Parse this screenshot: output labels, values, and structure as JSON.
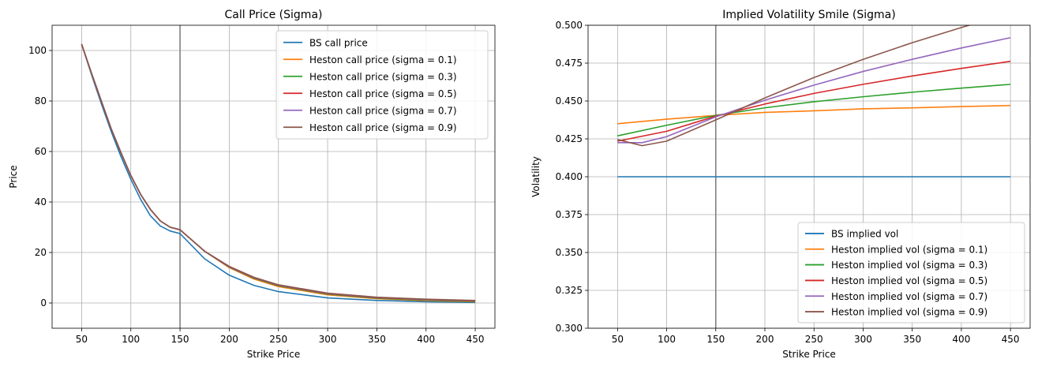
{
  "chart_data": [
    {
      "type": "line",
      "title": "Call Price (Sigma)",
      "xlabel": "Strike Price",
      "ylabel": "Price",
      "xlim": [
        20,
        470
      ],
      "ylim": [
        -10,
        110
      ],
      "xticks": [
        50,
        100,
        150,
        200,
        250,
        300,
        350,
        400,
        450
      ],
      "xtick_labels": [
        "50",
        "100",
        "150",
        "200",
        "250",
        "300",
        "350",
        "400",
        "450"
      ],
      "yticks": [
        0,
        20,
        40,
        60,
        80,
        100
      ],
      "ytick_labels": [
        "0",
        "20",
        "40",
        "60",
        "80",
        "100"
      ],
      "grid": true,
      "legend_position": "top-right",
      "vertical_line_x": 150,
      "x": [
        50,
        60,
        70,
        80,
        90,
        100,
        110,
        120,
        130,
        140,
        150,
        175,
        200,
        225,
        250,
        300,
        350,
        400,
        450
      ],
      "series": [
        {
          "name": "BS call price",
          "color": "#1f77b4",
          "values": [
            102.5,
            90.5,
            79.0,
            68.0,
            58.0,
            49.0,
            41.0,
            34.5,
            30.5,
            28.5,
            27.5,
            17.5,
            11.0,
            7.0,
            4.5,
            2.0,
            1.0,
            0.5,
            0.2
          ]
        },
        {
          "name": "Heston call price (sigma = 0.1)",
          "color": "#ff7f0e",
          "values": [
            102.5,
            91.0,
            80.0,
            69.0,
            59.5,
            50.5,
            43.0,
            37.0,
            32.5,
            30.0,
            29.0,
            20.5,
            14.0,
            9.5,
            6.5,
            3.2,
            1.7,
            0.9,
            0.5
          ]
        },
        {
          "name": "Heston call price (sigma = 0.3)",
          "color": "#2ca02c",
          "values": [
            102.5,
            91.0,
            80.0,
            69.0,
            59.5,
            50.5,
            43.0,
            37.0,
            32.5,
            30.0,
            29.0,
            20.5,
            14.2,
            9.8,
            6.8,
            3.5,
            1.9,
            1.1,
            0.6
          ]
        },
        {
          "name": "Heston call price (sigma = 0.5)",
          "color": "#d62728",
          "values": [
            102.5,
            91.0,
            80.0,
            69.0,
            59.5,
            50.5,
            43.0,
            37.0,
            32.5,
            30.0,
            29.0,
            20.5,
            14.3,
            10.0,
            7.0,
            3.7,
            2.1,
            1.3,
            0.8
          ]
        },
        {
          "name": "Heston call price (sigma = 0.7)",
          "color": "#9467bd",
          "values": [
            102.5,
            91.0,
            80.0,
            69.0,
            59.5,
            50.5,
            43.0,
            37.0,
            32.5,
            30.0,
            29.0,
            20.5,
            14.4,
            10.1,
            7.1,
            3.8,
            2.2,
            1.4,
            0.9
          ]
        },
        {
          "name": "Heston call price (sigma = 0.9)",
          "color": "#8c564b",
          "values": [
            102.5,
            91.0,
            80.0,
            69.0,
            59.5,
            50.5,
            43.0,
            37.0,
            32.5,
            30.0,
            29.0,
            20.5,
            14.5,
            10.2,
            7.2,
            3.9,
            2.3,
            1.5,
            1.0
          ]
        }
      ]
    },
    {
      "type": "line",
      "title": "Implied Volatility Smile (Sigma)",
      "xlabel": "Strike Price",
      "ylabel": "Volatility",
      "xlim": [
        20,
        470
      ],
      "ylim": [
        0.3,
        0.5
      ],
      "xticks": [
        50,
        100,
        150,
        200,
        250,
        300,
        350,
        400,
        450
      ],
      "xtick_labels": [
        "50",
        "100",
        "150",
        "200",
        "250",
        "300",
        "350",
        "400",
        "450"
      ],
      "yticks": [
        0.3,
        0.325,
        0.35,
        0.375,
        0.4,
        0.425,
        0.45,
        0.475,
        0.5
      ],
      "ytick_labels": [
        "0.300",
        "0.325",
        "0.350",
        "0.375",
        "0.400",
        "0.425",
        "0.450",
        "0.475",
        "0.500"
      ],
      "grid": true,
      "legend_position": "bottom-right",
      "vertical_line_x": 150,
      "series": [
        {
          "name": "BS implied vol",
          "color": "#1f77b4",
          "x": [
            50,
            450
          ],
          "values": [
            0.4,
            0.4
          ]
        },
        {
          "name": "Heston implied vol (sigma = 0.1)",
          "color": "#ff7f0e",
          "x": [
            50,
            100,
            150,
            200,
            250,
            300,
            350,
            400,
            450
          ],
          "values": [
            0.435,
            0.438,
            0.4405,
            0.4425,
            0.4435,
            0.4448,
            0.4455,
            0.4463,
            0.447
          ]
        },
        {
          "name": "Heston implied vol (sigma = 0.3)",
          "color": "#2ca02c",
          "x": [
            50,
            100,
            150,
            200,
            250,
            300,
            350,
            400,
            450
          ],
          "values": [
            0.427,
            0.434,
            0.4405,
            0.4455,
            0.4495,
            0.4528,
            0.4558,
            0.4585,
            0.461
          ]
        },
        {
          "name": "Heston implied vol (sigma = 0.5)",
          "color": "#d62728",
          "x": [
            50,
            100,
            150,
            200,
            250,
            300,
            350,
            400,
            450
          ],
          "values": [
            0.4235,
            0.43,
            0.44,
            0.448,
            0.455,
            0.461,
            0.4665,
            0.4715,
            0.4762
          ]
        },
        {
          "name": "Heston implied vol (sigma = 0.7)",
          "color": "#9467bd",
          "x": [
            50,
            75,
            100,
            150,
            200,
            250,
            300,
            350,
            400,
            450
          ],
          "values": [
            0.4225,
            0.4225,
            0.4265,
            0.4395,
            0.4505,
            0.4605,
            0.4695,
            0.4775,
            0.485,
            0.4918
          ]
        },
        {
          "name": "Heston implied vol (sigma = 0.9)",
          "color": "#8c564b",
          "x": [
            50,
            75,
            100,
            150,
            200,
            250,
            300,
            350,
            400,
            450
          ],
          "values": [
            0.4245,
            0.4205,
            0.4235,
            0.4375,
            0.452,
            0.4655,
            0.4775,
            0.4885,
            0.4985,
            0.508
          ]
        }
      ]
    }
  ]
}
